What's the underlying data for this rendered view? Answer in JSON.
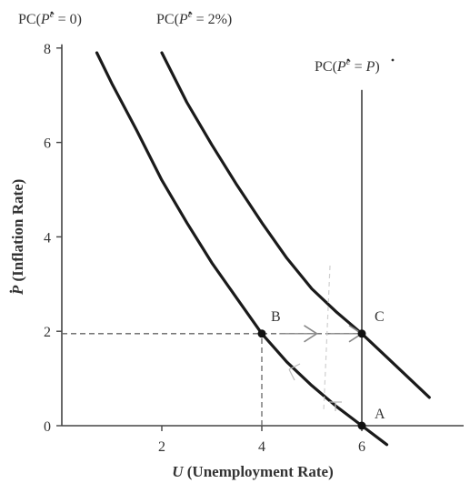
{
  "chart_data": {
    "type": "line",
    "xlabel_symbol": "U",
    "xlabel_rest": " (Unemployment Rate)",
    "ylabel_symbol": "P",
    "ylabel_rest": " (Inflation Rate)",
    "xlim": [
      0,
      7.4
    ],
    "ylim": [
      0,
      8
    ],
    "x_ticks": [
      2,
      4,
      6
    ],
    "y_ticks": [
      0,
      2,
      4,
      6,
      8
    ],
    "grid": false,
    "series": [
      {
        "name_prefix": "PC(",
        "name_sym": "P",
        "name_sup": "e",
        "name_suffix": " = 0)",
        "x": [
          0.7,
          1.0,
          1.5,
          2.0,
          2.5,
          3.0,
          3.5,
          4.0,
          4.5,
          5.0,
          5.5,
          6.0,
          6.5
        ],
        "y": [
          7.9,
          7.25,
          6.25,
          5.2,
          4.3,
          3.45,
          2.7,
          1.95,
          1.35,
          0.85,
          0.4,
          0.0,
          -0.4
        ]
      },
      {
        "name_prefix": "PC(",
        "name_sym": "P",
        "name_sup": "e",
        "name_suffix": " = 2%)",
        "x": [
          2.0,
          2.5,
          3.0,
          3.5,
          4.0,
          4.5,
          5.0,
          5.5,
          6.0,
          6.5,
          7.0,
          7.35
        ],
        "y": [
          7.9,
          6.85,
          5.95,
          5.1,
          4.3,
          3.55,
          2.9,
          2.4,
          1.95,
          1.45,
          0.95,
          0.6
        ]
      },
      {
        "name_prefix": "PC(",
        "name_sym": "P",
        "name_sup": "e",
        "name_suffix": " = ",
        "name_sym2": "P",
        "name_close": ")",
        "x": [
          6.0,
          6.0
        ],
        "y": [
          0,
          7.1
        ]
      }
    ],
    "points": [
      {
        "label": "A",
        "x": 6,
        "y": 0
      },
      {
        "label": "B",
        "x": 4,
        "y": 1.95
      },
      {
        "label": "C",
        "x": 6,
        "y": 1.95
      }
    ],
    "dashed_guides": [
      {
        "from": [
          0,
          1.95
        ],
        "to": [
          6,
          1.95
        ]
      },
      {
        "from": [
          4,
          0
        ],
        "to": [
          4,
          1.95
        ]
      }
    ],
    "arrows": [
      {
        "from": [
          4.35,
          1.95
        ],
        "to": [
          5.1,
          1.95
        ]
      },
      {
        "from": [
          5.35,
          1.95
        ],
        "to": [
          6.0,
          1.95
        ]
      }
    ]
  }
}
